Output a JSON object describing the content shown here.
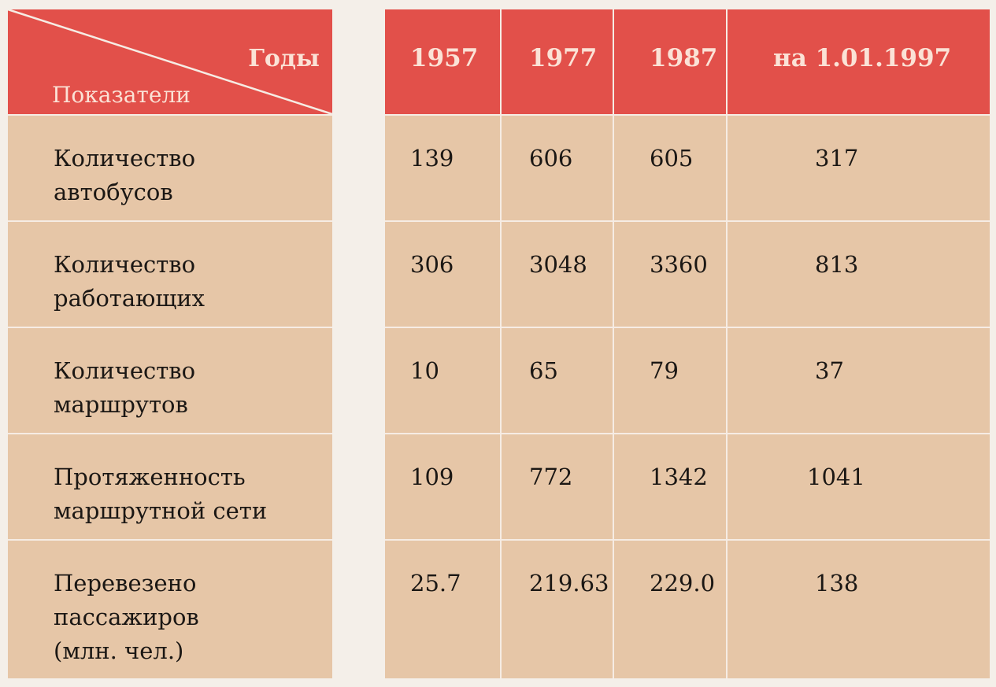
{
  "header": {
    "years_label": "Годы",
    "indicators_label": "Показатели",
    "columns": [
      "1957",
      "1977",
      "1987",
      "на 1.01.1997"
    ]
  },
  "rows": [
    {
      "label": [
        "Количество",
        "автобусов"
      ],
      "values": [
        "139",
        "606",
        "605",
        "317"
      ]
    },
    {
      "label": [
        "Количество",
        "работающих"
      ],
      "values": [
        "306",
        "3048",
        "3360",
        "813"
      ]
    },
    {
      "label": [
        "Количество",
        "маршрутов"
      ],
      "values": [
        "10",
        "65",
        "79",
        "37"
      ]
    },
    {
      "label": [
        "Протяженность",
        "маршрутной сети"
      ],
      "values": [
        "109",
        "772",
        "1342",
        "1041"
      ]
    },
    {
      "label": [
        "Перевезено",
        "пассажиров",
        "(млн. чел.)"
      ],
      "values": [
        "25.7",
        "219.63",
        "229.0",
        "138"
      ]
    }
  ],
  "colors": {
    "header_red": "#e2504a",
    "body_tan": "#e6c6a7",
    "divider": "#f6ece4",
    "header_text": "#fbe2d6"
  }
}
